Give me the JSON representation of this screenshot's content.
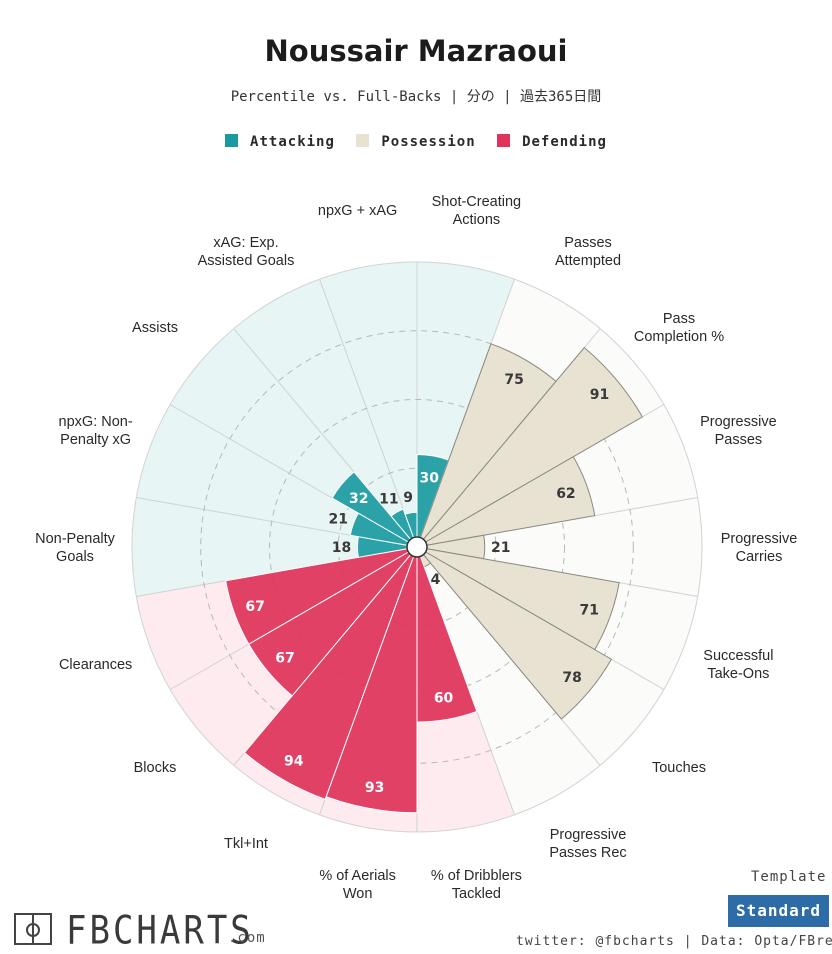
{
  "header": {
    "title": "Noussair Mazraoui",
    "subtitle": "Percentile vs. Full-Backs | 分の | 過去365日間"
  },
  "legend": [
    {
      "label": "Attacking",
      "color": "#1a9aa0"
    },
    {
      "label": "Possession",
      "color": "#e8e2d2"
    },
    {
      "label": "Defending",
      "color": "#e0325a"
    }
  ],
  "footer": {
    "brand": "FBCHARTS",
    "brand_suffix": ".com",
    "template_label": "Template",
    "template_value": "Standard",
    "credit": "twitter: @fbcharts | Data: Opta/FBref"
  },
  "chart_data": {
    "type": "polar-bar",
    "title": "Noussair Mazraoui",
    "subtitle": "Percentile vs. Full-Backs | 分の | 過去365日間",
    "rlim": [
      0,
      100
    ],
    "gridlines": [
      25,
      50,
      75
    ],
    "groups": {
      "Attacking": {
        "bar": "#1a9aa0",
        "bg": "#e8f5f5"
      },
      "Possession": {
        "bar": "#e8e2d2",
        "bg": "#fbfbf9"
      },
      "Defending": {
        "bar": "#e0325a",
        "bg": "#fdebef"
      }
    },
    "metrics": [
      {
        "label": [
          "Shot-Creating",
          "Actions"
        ],
        "value": 30,
        "group": "Attacking"
      },
      {
        "label": [
          "Passes",
          "Attempted"
        ],
        "value": 75,
        "group": "Possession"
      },
      {
        "label": [
          "Pass",
          "Completion %"
        ],
        "value": 91,
        "group": "Possession"
      },
      {
        "label": [
          "Progressive",
          "Passes"
        ],
        "value": 62,
        "group": "Possession"
      },
      {
        "label": [
          "Progressive",
          "Carries"
        ],
        "value": 21,
        "group": "Possession"
      },
      {
        "label": [
          "Successful",
          "Take-Ons"
        ],
        "value": 71,
        "group": "Possession"
      },
      {
        "label": [
          "Touches"
        ],
        "value": 78,
        "group": "Possession"
      },
      {
        "label": [
          "Progressive",
          "Passes Rec"
        ],
        "value": 4,
        "group": "Possession"
      },
      {
        "label": [
          "% of Dribblers",
          "Tackled"
        ],
        "value": 60,
        "group": "Defending"
      },
      {
        "label": [
          "% of Aerials",
          "Won"
        ],
        "value": 93,
        "group": "Defending"
      },
      {
        "label": [
          "Tkl+Int"
        ],
        "value": 94,
        "group": "Defending"
      },
      {
        "label": [
          "Blocks"
        ],
        "value": 67,
        "group": "Defending"
      },
      {
        "label": [
          "Clearances"
        ],
        "value": 67,
        "group": "Defending"
      },
      {
        "label": [
          "Non-Penalty",
          "Goals"
        ],
        "value": 18,
        "group": "Attacking"
      },
      {
        "label": [
          "npxG: Non-",
          "Penalty xG"
        ],
        "value": 21,
        "group": "Attacking"
      },
      {
        "label": [
          "Assists"
        ],
        "value": 32,
        "group": "Attacking"
      },
      {
        "label": [
          "xAG: Exp.",
          "Assisted Goals"
        ],
        "value": 11,
        "group": "Attacking"
      },
      {
        "label": [
          "npxG + xAG"
        ],
        "value": 9,
        "group": "Attacking"
      }
    ]
  }
}
